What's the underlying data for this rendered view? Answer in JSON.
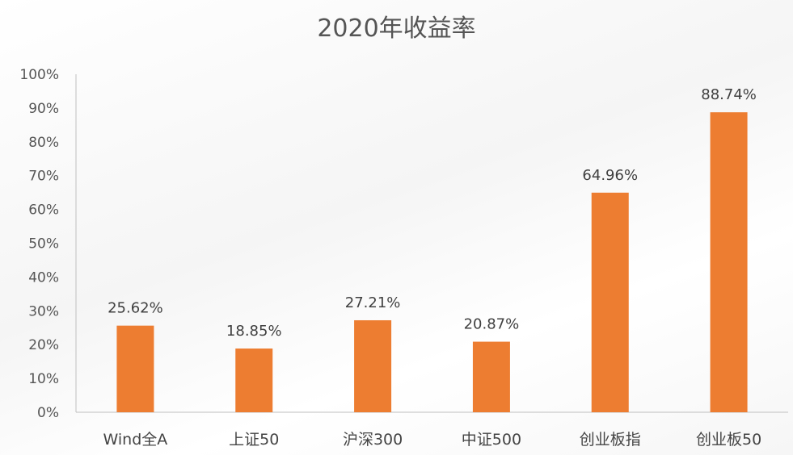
{
  "chart_data": {
    "type": "bar",
    "title": "2020年收益率",
    "categories": [
      "Wind全A",
      "上证50",
      "沪深300",
      "中证500",
      "创业板指",
      "创业板50"
    ],
    "series": [
      {
        "values": [
          25.62,
          18.85,
          27.21,
          20.87,
          64.96,
          88.74
        ],
        "data_labels": [
          "25.62%",
          "18.85%",
          "27.21%",
          "20.87%",
          "64.96%",
          "88.74%"
        ]
      }
    ],
    "y_ticks": [
      "0%",
      "10%",
      "20%",
      "30%",
      "40%",
      "50%",
      "60%",
      "70%",
      "80%",
      "90%",
      "100%"
    ],
    "ylim": [
      0,
      100
    ],
    "grid": false,
    "legend": "none",
    "bar_color": "#ED7D31"
  }
}
